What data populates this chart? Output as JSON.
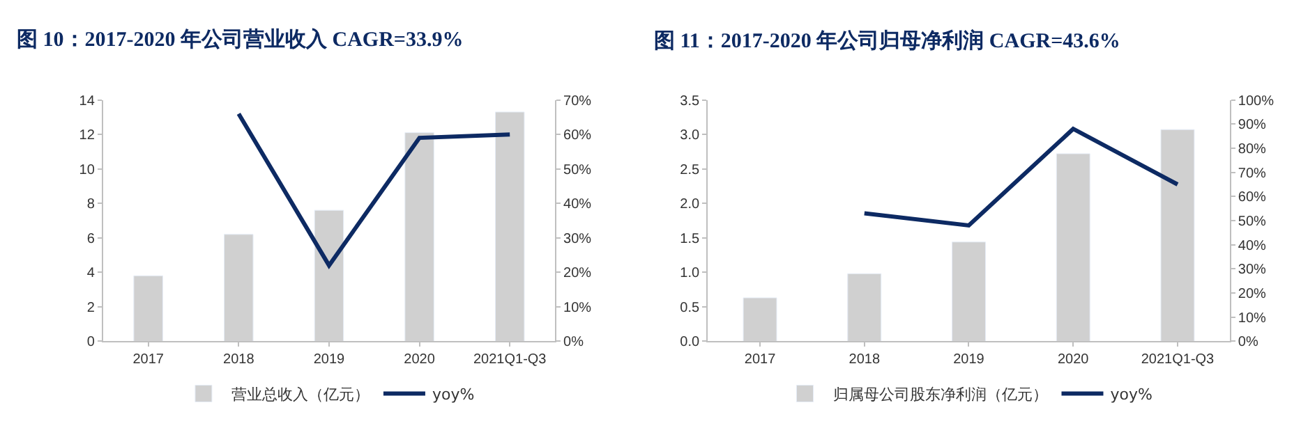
{
  "chart_data": [
    {
      "type": "bar",
      "title": "图 10：2017-2020 年公司营业收入 CAGR=33.9%",
      "categories": [
        "2017",
        "2018",
        "2019",
        "2020",
        "2021Q1-Q3"
      ],
      "series": [
        {
          "name": "营业总收入（亿元）",
          "color": "#d0d0d0",
          "values": [
            3.8,
            6.2,
            7.6,
            12.1,
            13.3
          ]
        },
        {
          "name": "yoy%",
          "type": "line",
          "axis": "y2",
          "color": "#0d2a63",
          "values": [
            null,
            66,
            22,
            59,
            60
          ]
        }
      ],
      "ylim": [
        0,
        14
      ],
      "yticks": [
        0,
        2,
        4,
        6,
        8,
        10,
        12,
        14
      ],
      "y2lim": [
        0,
        70
      ],
      "y2ticks": [
        {
          "value": 0,
          "label": "0%"
        },
        {
          "value": 10,
          "label": "10%"
        },
        {
          "value": 20,
          "label": "20%"
        },
        {
          "value": 30,
          "label": "30%"
        },
        {
          "value": 40,
          "label": "40%"
        },
        {
          "value": 50,
          "label": "50%"
        },
        {
          "value": 60,
          "label": "60%"
        },
        {
          "value": 70,
          "label": "70%"
        }
      ],
      "grid": false,
      "legend": "bottom",
      "marker": "none",
      "line_style": "solid"
    },
    {
      "type": "bar",
      "title": "图 11：2017-2020 年公司归母净利润 CAGR=43.6%",
      "categories": [
        "2017",
        "2018",
        "2019",
        "2020",
        "2021Q1-Q3"
      ],
      "series": [
        {
          "name": "归属母公司股东净利润（亿元）",
          "color": "#d0d0d0",
          "values": [
            0.63,
            0.98,
            1.44,
            2.72,
            3.07
          ]
        },
        {
          "name": "yoy%",
          "type": "line",
          "axis": "y2",
          "color": "#0d2a63",
          "values": [
            null,
            53,
            48,
            88,
            65
          ]
        }
      ],
      "ylim": [
        0,
        3.5
      ],
      "yticks": [
        {
          "value": 0,
          "label": "0.0"
        },
        0.5,
        {
          "value": 1,
          "label": "1.0"
        },
        1.5,
        {
          "value": 2,
          "label": "2.0"
        },
        2.5,
        {
          "value": 3,
          "label": "3.0"
        },
        3.5
      ],
      "y2lim": [
        0,
        100
      ],
      "y2ticks": [
        {
          "value": 0,
          "label": "0%"
        },
        {
          "value": 10,
          "label": "10%"
        },
        {
          "value": 20,
          "label": "20%"
        },
        {
          "value": 30,
          "label": "30%"
        },
        {
          "value": 40,
          "label": "40%"
        },
        {
          "value": 50,
          "label": "50%"
        },
        {
          "value": 60,
          "label": "60%"
        },
        {
          "value": 70,
          "label": "70%"
        },
        {
          "value": 80,
          "label": "80%"
        },
        {
          "value": 90,
          "label": "90%"
        },
        {
          "value": 100,
          "label": "100%"
        }
      ],
      "grid": false,
      "legend": "bottom",
      "marker": "none",
      "line_style": "solid"
    }
  ]
}
